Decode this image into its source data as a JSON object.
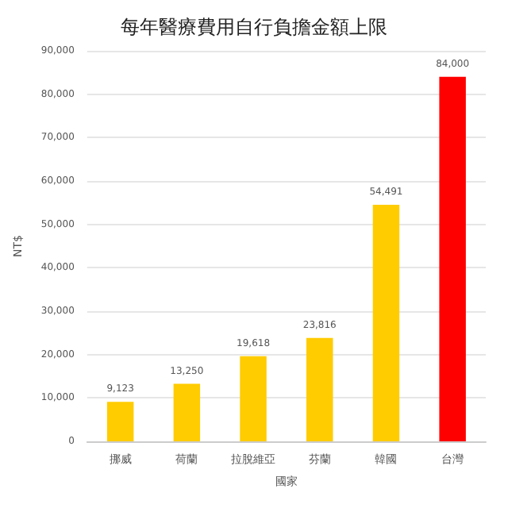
{
  "chart_data": {
    "type": "bar",
    "title": "每年醫療費用自行負擔金額上限",
    "xlabel": "國家",
    "ylabel": "NT$",
    "categories": [
      "挪威",
      "荷蘭",
      "拉脫維亞",
      "芬蘭",
      "韓國",
      "台灣"
    ],
    "values": [
      9123,
      13250,
      19618,
      23816,
      54491,
      84000
    ],
    "value_labels": [
      "9,123",
      "13,250",
      "19,618",
      "23,816",
      "54,491",
      "84,000"
    ],
    "colors": [
      "#ffcc00",
      "#ffcc00",
      "#ffcc00",
      "#ffcc00",
      "#ffcc00",
      "#ff0000"
    ],
    "ylim": [
      0,
      90000
    ],
    "yticks": [
      0,
      {
        "value": 10000,
        "label": "10,000"
      },
      {
        "value": 20000,
        "label": "20,000"
      },
      {
        "value": 30000,
        "label": "30,000"
      },
      {
        "value": 40000,
        "label": "40,000"
      },
      {
        "value": 50000,
        "label": "50,000"
      },
      {
        "value": 60000,
        "label": "60,000"
      },
      {
        "value": 70000,
        "label": "70,000"
      },
      {
        "value": 80000,
        "label": "80,000"
      },
      {
        "value": 90000,
        "label": "90,000"
      }
    ],
    "grid": "y"
  }
}
